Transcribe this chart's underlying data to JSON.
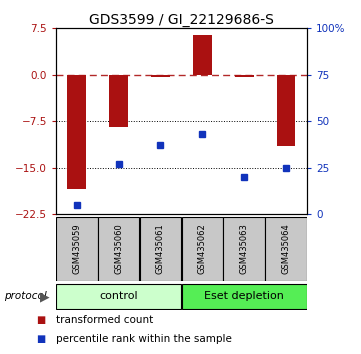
{
  "title": "GDS3599 / GI_22129686-S",
  "categories": [
    "GSM435059",
    "GSM435060",
    "GSM435061",
    "GSM435062",
    "GSM435063",
    "GSM435064"
  ],
  "red_values": [
    -18.5,
    -8.5,
    -0.3,
    6.5,
    -0.3,
    -11.5
  ],
  "blue_values_pct": [
    5,
    27,
    37,
    43,
    20,
    25
  ],
  "ylim_left": [
    -22.5,
    7.5
  ],
  "ylim_right": [
    0,
    100
  ],
  "yticks_left": [
    7.5,
    0,
    -7.5,
    -15,
    -22.5
  ],
  "yticks_right": [
    100,
    75,
    50,
    25,
    0
  ],
  "ytick_right_labels": [
    "100%",
    "75",
    "50",
    "25",
    "0"
  ],
  "hlines_dotted": [
    -7.5,
    -15
  ],
  "hline_dashed": 0,
  "bar_width": 0.45,
  "bar_color": "#aa1111",
  "dot_color": "#1133bb",
  "control_label": "control",
  "eset_label": "Eset depletion",
  "control_color": "#ccffcc",
  "eset_color": "#55ee55",
  "protocol_label": "protocol",
  "legend1": "transformed count",
  "legend2": "percentile rank within the sample",
  "title_fontsize": 10,
  "legend_fontsize": 7.5
}
